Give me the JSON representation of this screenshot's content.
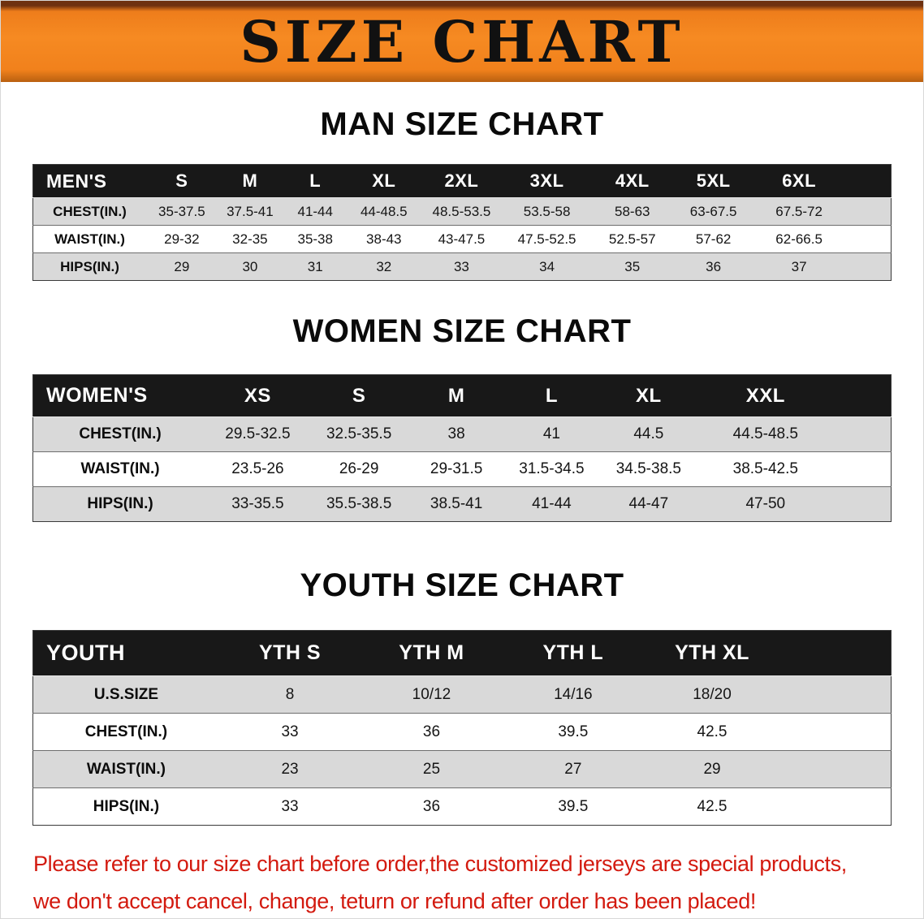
{
  "banner": {
    "title": "SIZE CHART"
  },
  "sections": [
    {
      "id": "men",
      "heading": "MAN SIZE CHART",
      "header": [
        "MEN'S",
        "S",
        "M",
        "L",
        "XL",
        "2XL",
        "3XL",
        "4XL",
        "5XL",
        "6XL"
      ],
      "rows": [
        [
          "CHEST(IN.)",
          "35-37.5",
          "37.5-41",
          "41-44",
          "44-48.5",
          "48.5-53.5",
          "53.5-58",
          "58-63",
          "63-67.5",
          "67.5-72"
        ],
        [
          "WAIST(IN.)",
          "29-32",
          "32-35",
          "35-38",
          "38-43",
          "43-47.5",
          "47.5-52.5",
          "52.5-57",
          "57-62",
          "62-66.5"
        ],
        [
          "HIPS(IN.)",
          "29",
          "30",
          "31",
          "32",
          "33",
          "34",
          "35",
          "36",
          "37"
        ]
      ]
    },
    {
      "id": "women",
      "heading": "WOMEN SIZE CHART",
      "header": [
        "WOMEN'S",
        "XS",
        "S",
        "M",
        "L",
        "XL",
        "XXL"
      ],
      "rows": [
        [
          "CHEST(IN.)",
          "29.5-32.5",
          "32.5-35.5",
          "38",
          "41",
          "44.5",
          "44.5-48.5"
        ],
        [
          "WAIST(IN.)",
          "23.5-26",
          "26-29",
          "29-31.5",
          "31.5-34.5",
          "34.5-38.5",
          "38.5-42.5"
        ],
        [
          "HIPS(IN.)",
          "33-35.5",
          "35.5-38.5",
          "38.5-41",
          "41-44",
          "44-47",
          "47-50"
        ]
      ]
    },
    {
      "id": "youth",
      "heading": "YOUTH SIZE CHART",
      "header": [
        "YOUTH",
        "YTH S",
        "YTH M",
        "YTH L",
        "YTH XL"
      ],
      "rows": [
        [
          "U.S.SIZE",
          "8",
          "10/12",
          "14/16",
          "18/20"
        ],
        [
          "CHEST(IN.)",
          "33",
          "36",
          "39.5",
          "42.5"
        ],
        [
          "WAIST(IN.)",
          "23",
          "25",
          "27",
          "29"
        ],
        [
          "HIPS(IN.)",
          "33",
          "36",
          "39.5",
          "42.5"
        ]
      ]
    }
  ],
  "footer": {
    "line1": "Please refer to our size chart before order,the customized jerseys are special products,",
    "line2": "we don't accept cancel, change, teturn or refund after order has been placed!"
  },
  "colors": {
    "banner_orange": "#f5831f",
    "header_black": "#181818",
    "row_gray": "#d9d9d9",
    "footer_red": "#d31a0f"
  }
}
